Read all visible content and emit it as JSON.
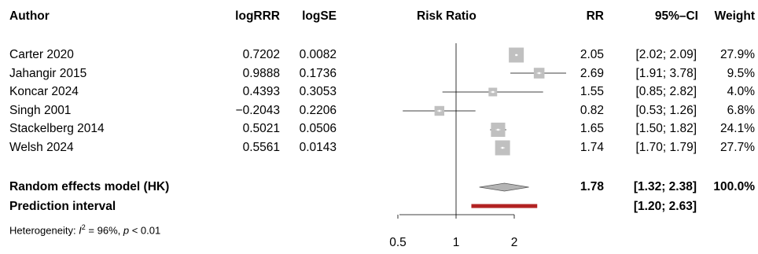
{
  "headers": {
    "author": "Author",
    "logrrr": "logRRR",
    "logse": "logSE",
    "risk_ratio": "Risk Ratio",
    "rr": "RR",
    "ci": "95%–CI",
    "weight": "Weight"
  },
  "studies": [
    {
      "author": "Carter 2020",
      "logrrr": "0.7202",
      "logse": "0.0082",
      "rr": "2.05",
      "ci": "[2.02; 2.09]",
      "weight": "27.9%"
    },
    {
      "author": "Jahangir 2015",
      "logrrr": "0.9888",
      "logse": "0.1736",
      "rr": "2.69",
      "ci": "[1.91; 3.78]",
      "weight": "9.5%"
    },
    {
      "author": "Koncar 2024",
      "logrrr": "0.4393",
      "logse": "0.3053",
      "rr": "1.55",
      "ci": "[0.85; 2.82]",
      "weight": "4.0%"
    },
    {
      "author": "Singh 2001",
      "logrrr": "−0.2043",
      "logse": "0.2206",
      "rr": "0.82",
      "ci": "[0.53; 1.26]",
      "weight": "6.8%"
    },
    {
      "author": "Stackelberg 2014",
      "logrrr": "0.5021",
      "logse": "0.0506",
      "rr": "1.65",
      "ci": "[1.50; 1.82]",
      "weight": "24.1%"
    },
    {
      "author": "Welsh 2024",
      "logrrr": "0.5561",
      "logse": "0.0143",
      "rr": "1.74",
      "ci": "[1.70; 1.79]",
      "weight": "27.7%"
    }
  ],
  "pooled": {
    "label": "Random effects model (HK)",
    "rr": "1.78",
    "ci": "[1.32; 2.38]",
    "weight": "100.0%"
  },
  "prediction": {
    "label": "Prediction interval",
    "ci": "[1.20; 2.63]"
  },
  "heterogeneity": {
    "prefix": "Heterogeneity: ",
    "i2_symbol": "I",
    "i2_sup": "2",
    "i2_value": " = 96%, ",
    "p_symbol": "p",
    "p_value": " < 0.01"
  },
  "chart_data": {
    "type": "forest",
    "scale": "log",
    "xlim": [
      0.5,
      2
    ],
    "reference_line": 1,
    "ticks": [
      0.5,
      1,
      2
    ],
    "tick_labels": [
      "0.5",
      "1",
      "2"
    ],
    "xlabel": "Risk Ratio",
    "studies": [
      {
        "author": "Carter 2020",
        "rr": 2.05,
        "lower": 2.02,
        "upper": 2.09,
        "weight": 27.9
      },
      {
        "author": "Jahangir 2015",
        "rr": 2.69,
        "lower": 1.91,
        "upper": 3.78,
        "weight": 9.5
      },
      {
        "author": "Koncar 2024",
        "rr": 1.55,
        "lower": 0.85,
        "upper": 2.82,
        "weight": 4.0
      },
      {
        "author": "Singh 2001",
        "rr": 0.82,
        "lower": 0.53,
        "upper": 1.26,
        "weight": 6.8
      },
      {
        "author": "Stackelberg 2014",
        "rr": 1.65,
        "lower": 1.5,
        "upper": 1.82,
        "weight": 24.1
      },
      {
        "author": "Welsh 2024",
        "rr": 1.74,
        "lower": 1.7,
        "upper": 1.79,
        "weight": 27.7
      }
    ],
    "pooled": {
      "rr": 1.78,
      "lower": 1.32,
      "upper": 2.38
    },
    "prediction_interval": {
      "lower": 1.2,
      "upper": 2.63
    },
    "colors": {
      "box": "#c0c0c0",
      "diamond": "#b4b4b4",
      "prediction": "#b22222"
    }
  }
}
